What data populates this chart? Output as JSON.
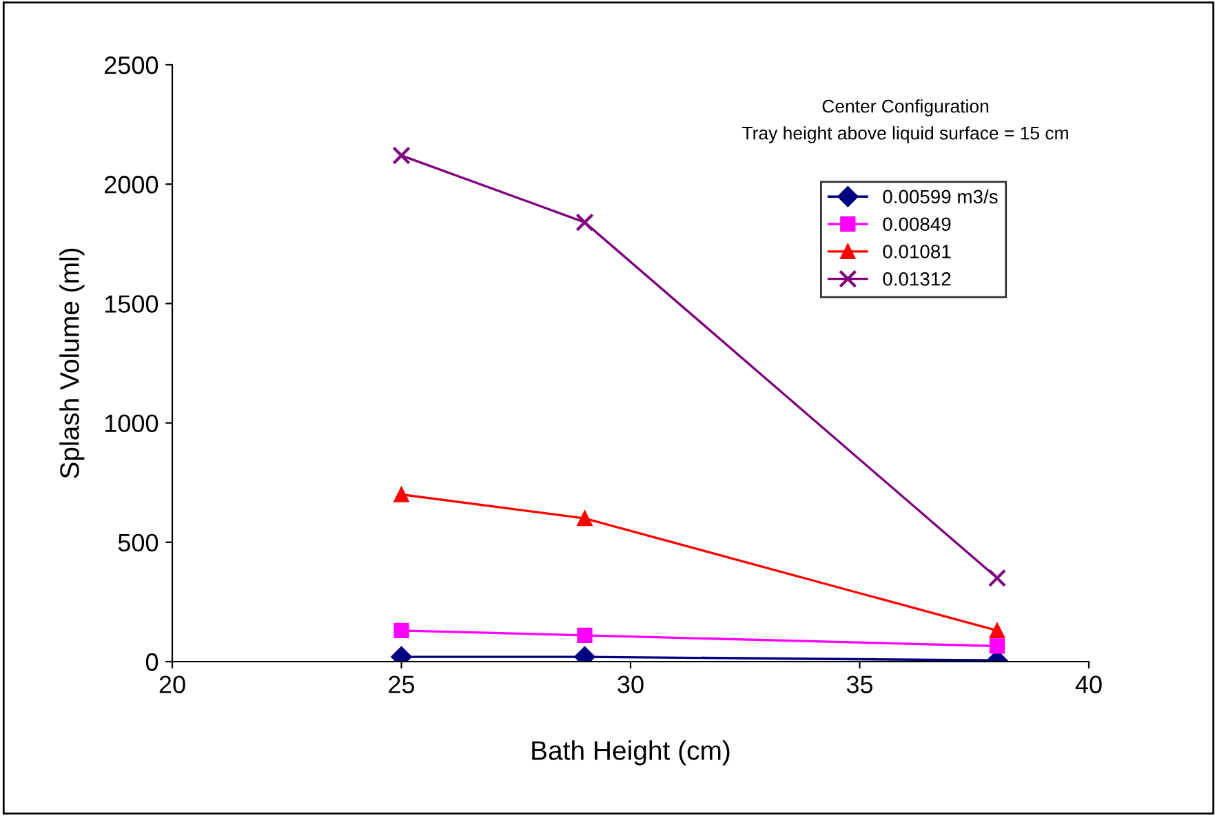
{
  "chart_data": {
    "type": "line",
    "xlabel": "Bath Height (cm)",
    "ylabel": "Splash Volume (ml)",
    "x": [
      25,
      29,
      38
    ],
    "series": [
      {
        "name": "0.00599 m3/s",
        "color": "#000080",
        "values": [
          20,
          20,
          5
        ],
        "marker": "diamond"
      },
      {
        "name": "0.00849",
        "color": "#ff00ff",
        "values": [
          130,
          110,
          65
        ],
        "marker": "square"
      },
      {
        "name": "0.01081",
        "color": "#ff0000",
        "values": [
          700,
          600,
          130
        ],
        "marker": "triangle"
      },
      {
        "name": "0.01312",
        "color": "#800080",
        "values": [
          2120,
          1840,
          350
        ],
        "marker": "cross"
      }
    ],
    "xlim": [
      20,
      40
    ],
    "xticks": [
      20,
      25,
      30,
      35,
      40
    ],
    "ylim": [
      0,
      2500
    ],
    "yticks": [
      0,
      500,
      1000,
      1500,
      2000,
      2500
    ],
    "grid": false,
    "legend": "top right",
    "line_style": "solid",
    "annotations": [
      "Center Configuration",
      "Tray height above liquid surface = 15 cm"
    ]
  }
}
